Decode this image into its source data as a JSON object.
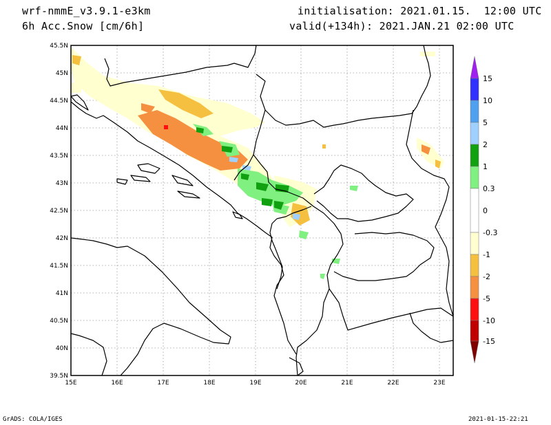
{
  "header": {
    "model": "wrf-nmmE_v3.9.1-e3km",
    "variable": "6h Acc.Snow [cm/6h]",
    "init": "initialisation: 2021.01.15.  12:00 UTC",
    "valid": "valid(+134h): 2021.JAN.21 02:00 UTC"
  },
  "footer": {
    "left": "GrADS: COLA/IGES",
    "right": "2021-01-15-22:21"
  },
  "map": {
    "lat_labels": [
      "45.5N",
      "45N",
      "44.5N",
      "44N",
      "43.5N",
      "43N",
      "42.5N",
      "42N",
      "41.5N",
      "41N",
      "40.5N",
      "40N",
      "39.5N"
    ],
    "lon_labels": [
      "15E",
      "16E",
      "17E",
      "18E",
      "19E",
      "20E",
      "21E",
      "22E",
      "23E"
    ],
    "lat_range": [
      39.5,
      45.5
    ],
    "lon_range": [
      15,
      23.3
    ],
    "grid": "dotted"
  },
  "colorbar": {
    "labels": [
      "15",
      "10",
      "5",
      "2",
      "1",
      "0.3",
      "0",
      "-0.3",
      "-1",
      "-2",
      "-5",
      "-10",
      "-15"
    ],
    "colors": [
      "#a020f0",
      "#3030ff",
      "#50a0f0",
      "#a0d0ff",
      "#10a010",
      "#80f080",
      "#ffffff",
      "#ffffd0",
      "#f5c040",
      "#f59040",
      "#ff1010",
      "#c00000",
      "#800000"
    ]
  }
}
